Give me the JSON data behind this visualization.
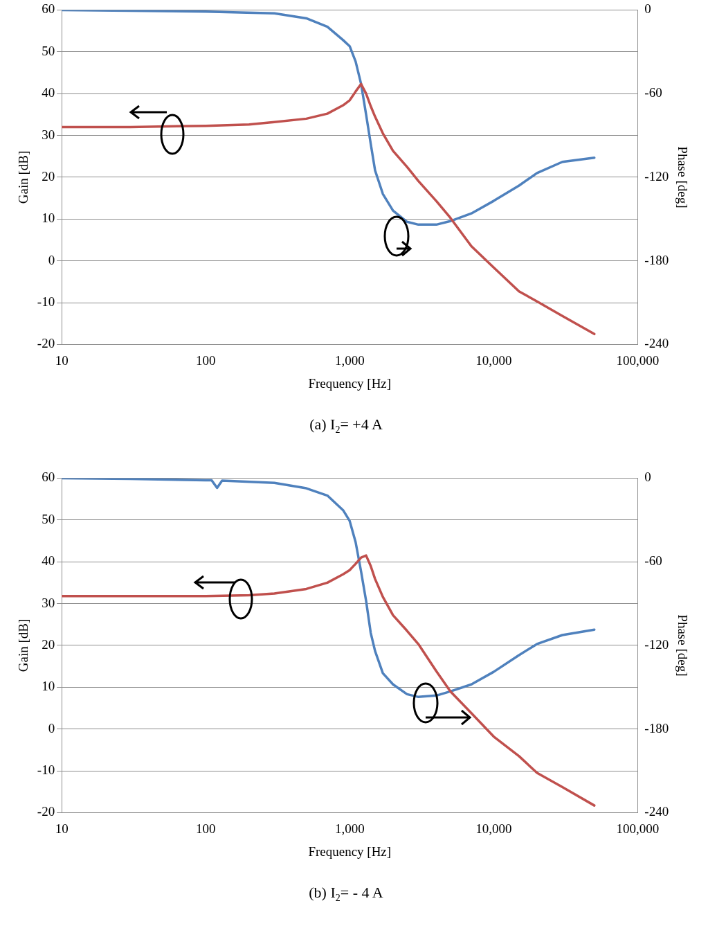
{
  "chart_data": [
    {
      "type": "line",
      "xlabel": "Frequency [Hz]",
      "ylabel": "Gain [dB]",
      "y2label": "Phase [deg]",
      "annotations": [
        "(a) I$_{2}$= +4 A"
      ],
      "log": "x",
      "grid": "y",
      "legend": false,
      "marker": "none",
      "line_style": "solid",
      "xlim": [
        10,
        100000
      ],
      "xticks": [
        {
          "value": 10,
          "label": "10"
        },
        {
          "value": 100,
          "label": "100"
        },
        {
          "value": 1000,
          "label": "1,000"
        },
        {
          "value": 10000,
          "label": "10,000"
        },
        {
          "value": 100000,
          "label": "100,000"
        }
      ],
      "ylim": [
        -20,
        60
      ],
      "yticks": [
        -20,
        -10,
        0,
        10,
        20,
        30,
        40,
        50,
        60
      ],
      "y2lim": [
        -240,
        0
      ],
      "y2ticks": [
        -240,
        -180,
        -120,
        -60,
        0
      ],
      "series": [
        {
          "color": "#c0504d",
          "x": [
            10,
            30,
            100,
            200,
            300,
            500,
            700,
            900,
            1000,
            1100,
            1200,
            1300,
            1400,
            1500,
            1700,
            2000,
            2500,
            3000,
            4000,
            5000,
            7000,
            10000,
            15000,
            20000,
            30000,
            50000
          ],
          "values": [
            32,
            32,
            32.3,
            32.6,
            33.2,
            34,
            35.2,
            37.2,
            38.4,
            40.5,
            42.3,
            40,
            37,
            34.5,
            30.5,
            26.3,
            22.5,
            19.1,
            14.3,
            10.3,
            3.5,
            -1.6,
            -7.3,
            -9.7,
            -13.2,
            -17.5
          ]
        },
        {
          "color": "#4f81bd",
          "axis": "y2",
          "x": [
            10,
            30,
            100,
            300,
            500,
            700,
            900,
            1000,
            1100,
            1200,
            1300,
            1400,
            1500,
            1700,
            2000,
            2500,
            3000,
            4000,
            5000,
            7000,
            10000,
            15000,
            20000,
            30000,
            50000
          ],
          "values": [
            0,
            -0.5,
            -1.2,
            -2.4,
            -6,
            -12,
            -21.6,
            -26,
            -37,
            -53,
            -75,
            -96,
            -115,
            -132,
            -144,
            -152,
            -154,
            -154,
            -151.5,
            -146,
            -137,
            -126,
            -117,
            -109,
            -106
          ]
        }
      ]
    },
    {
      "type": "line",
      "xlabel": "Frequency [Hz]",
      "ylabel": "Gain [dB]",
      "y2label": "Phase [deg]",
      "annotations": [
        "(b) I$_{2}$= - 4 A"
      ],
      "log": "x",
      "grid": "y",
      "legend": false,
      "marker": "none",
      "line_style": "solid",
      "xlim": [
        10,
        100000
      ],
      "xticks": [
        {
          "value": 10,
          "label": "10"
        },
        {
          "value": 100,
          "label": "100"
        },
        {
          "value": 1000,
          "label": "1,000"
        },
        {
          "value": 10000,
          "label": "10,000"
        },
        {
          "value": 100000,
          "label": "100,000"
        }
      ],
      "ylim": [
        -20,
        60
      ],
      "yticks": [
        -20,
        -10,
        0,
        10,
        20,
        30,
        40,
        50,
        60
      ],
      "y2lim": [
        -240,
        0
      ],
      "y2ticks": [
        -240,
        -180,
        -120,
        -60,
        0
      ],
      "series": [
        {
          "color": "#c0504d",
          "x": [
            10,
            30,
            100,
            200,
            300,
            500,
            700,
            900,
            1000,
            1100,
            1200,
            1300,
            1400,
            1500,
            1700,
            2000,
            2500,
            3000,
            4000,
            5000,
            7000,
            10000,
            15000,
            20000,
            30000,
            50000
          ],
          "values": [
            31.8,
            31.8,
            31.8,
            32,
            32.4,
            33.5,
            35,
            37,
            38,
            39.5,
            41,
            41.5,
            39,
            35.9,
            31.6,
            27.2,
            23.5,
            20.3,
            13.8,
            9,
            3.8,
            -1.8,
            -6.5,
            -10.5,
            -13.9,
            -18.3
          ]
        },
        {
          "color": "#4f81bd",
          "axis": "y2",
          "x": [
            10,
            30,
            100,
            110,
            120,
            130,
            300,
            500,
            700,
            900,
            1000,
            1100,
            1200,
            1300,
            1400,
            1500,
            1700,
            2000,
            2500,
            3000,
            4000,
            5000,
            7000,
            10000,
            15000,
            20000,
            30000,
            50000
          ],
          "values": [
            0,
            -0.5,
            -1.6,
            -1.5,
            -7,
            -1.8,
            -3.4,
            -7.3,
            -12.5,
            -23,
            -30.7,
            -46,
            -67,
            -88,
            -111,
            -124,
            -140,
            -148,
            -155,
            -157,
            -156,
            -153,
            -148,
            -139,
            -127,
            -119,
            -112.6,
            -108.7
          ]
        }
      ]
    }
  ]
}
